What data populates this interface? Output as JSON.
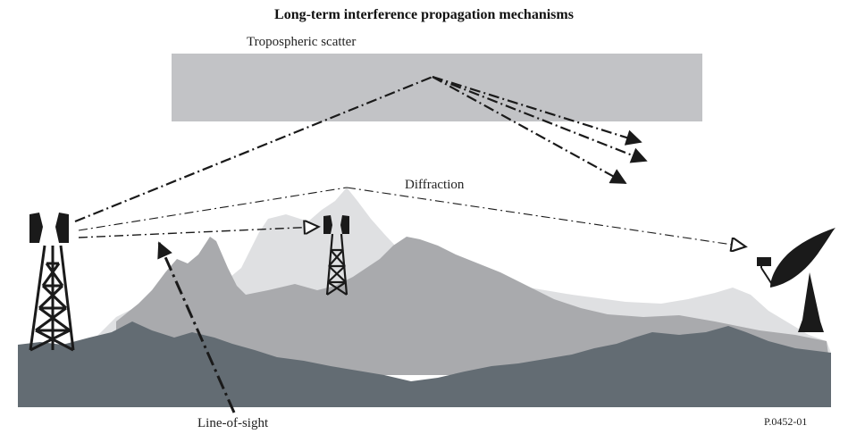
{
  "title": "Long-term interference propagation mechanisms",
  "labels": {
    "tropospheric_scatter": "Tropospheric scatter",
    "diffraction": "Diffraction",
    "line_of_sight": "Line-of-sight",
    "figure_ref": "P.0452-01"
  },
  "colors": {
    "scatter_layer": "#c2c3c6",
    "far_ridge": "#dfe0e2",
    "mid_ridge": "#a9aaad",
    "near_ridge": "#636c73",
    "ink": "#1a1a1a"
  },
  "icons": [
    "antenna-tower-icon",
    "antenna-tower-icon",
    "satellite-dish-icon"
  ]
}
